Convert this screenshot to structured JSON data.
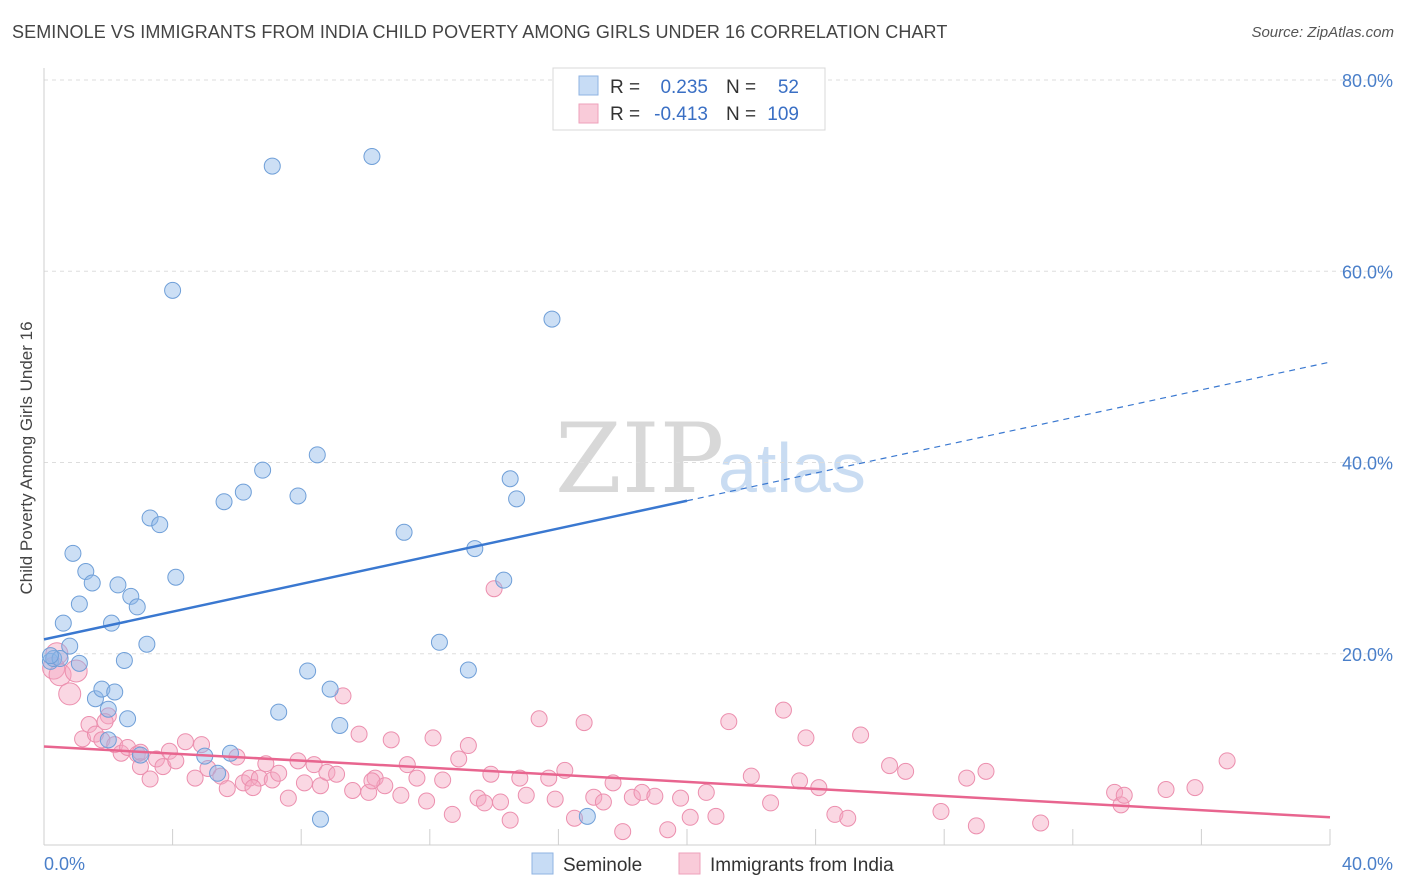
{
  "header": {
    "title": "SEMINOLE VS IMMIGRANTS FROM INDIA CHILD POVERTY AMONG GIRLS UNDER 16 CORRELATION CHART",
    "source": "Source: ZipAtlas.com"
  },
  "watermark": {
    "zip": "ZIP",
    "atlas": "atlas"
  },
  "legend": {
    "rows": [
      {
        "r_label": "R =",
        "r_value": "0.235",
        "n_label": "N =",
        "n_value": "52"
      },
      {
        "r_label": "R =",
        "r_value": "-0.413",
        "n_label": "N =",
        "n_value": "109"
      }
    ]
  },
  "bottom_legend": [
    "Seminole",
    "Immigrants from India"
  ],
  "chart_data": {
    "type": "scatter",
    "title": "SEMINOLE VS IMMIGRANTS FROM INDIA CHILD POVERTY AMONG GIRLS UNDER 16 CORRELATION CHART",
    "xlabel": "",
    "ylabel": "Child Poverty Among Girls Under 16",
    "xlim": [
      0,
      40
    ],
    "ylim": [
      0,
      80
    ],
    "x_tick_labels": [
      "0.0%",
      "40.0%"
    ],
    "y_ticks": [
      20,
      40,
      60,
      80
    ],
    "y_tick_labels": [
      "20.0%",
      "40.0%",
      "60.0%",
      "80.0%"
    ],
    "grid": true,
    "legend_position": "top-center",
    "colors": {
      "seminole": "#8fb8e8",
      "seminole_line": "#3a78d0",
      "india": "#f4a7c0",
      "india_line": "#e8658f"
    },
    "series": [
      {
        "name": "Seminole",
        "R": 0.235,
        "N": 52,
        "trend": {
          "x0": 0,
          "y0": 21.5,
          "x1": 40,
          "y1": 50.5,
          "solid_until_x": 20
        },
        "points": [
          [
            0.2,
            19.2
          ],
          [
            0.3,
            19.5
          ],
          [
            0.5,
            19.5
          ],
          [
            0.6,
            23.2
          ],
          [
            0.8,
            20.8
          ],
          [
            0.9,
            30.5
          ],
          [
            1.1,
            25.2
          ],
          [
            1.1,
            19.0
          ],
          [
            1.3,
            28.6
          ],
          [
            1.5,
            27.4
          ],
          [
            1.6,
            15.3
          ],
          [
            1.8,
            16.3
          ],
          [
            2.0,
            14.2
          ],
          [
            2.0,
            11.0
          ],
          [
            2.1,
            23.2
          ],
          [
            2.2,
            16.0
          ],
          [
            2.3,
            27.2
          ],
          [
            2.5,
            19.3
          ],
          [
            2.6,
            13.2
          ],
          [
            2.7,
            26.0
          ],
          [
            2.9,
            24.9
          ],
          [
            3.0,
            9.4
          ],
          [
            3.2,
            21.0
          ],
          [
            3.3,
            34.2
          ],
          [
            3.6,
            33.5
          ],
          [
            4.0,
            58.0
          ],
          [
            4.1,
            28.0
          ],
          [
            5.0,
            9.3
          ],
          [
            5.4,
            7.5
          ],
          [
            5.6,
            35.9
          ],
          [
            5.8,
            9.6
          ],
          [
            6.2,
            36.9
          ],
          [
            6.8,
            39.2
          ],
          [
            7.1,
            71.0
          ],
          [
            7.3,
            13.9
          ],
          [
            7.9,
            36.5
          ],
          [
            8.2,
            18.2
          ],
          [
            8.5,
            40.8
          ],
          [
            8.6,
            2.7
          ],
          [
            8.9,
            16.3
          ],
          [
            9.2,
            12.5
          ],
          [
            10.2,
            72.0
          ],
          [
            11.2,
            32.7
          ],
          [
            12.3,
            21.2
          ],
          [
            13.2,
            18.3
          ],
          [
            13.4,
            31.0
          ],
          [
            14.3,
            27.7
          ],
          [
            14.5,
            38.3
          ],
          [
            14.7,
            36.2
          ],
          [
            15.8,
            55.0
          ],
          [
            16.9,
            3.0
          ],
          [
            0.2,
            19.8
          ]
        ]
      },
      {
        "name": "Immigrants from India",
        "R": -0.413,
        "N": 109,
        "trend": {
          "x0": 0,
          "y0": 10.3,
          "x1": 40,
          "y1": 2.9
        },
        "points": [
          [
            0.3,
            18.5
          ],
          [
            0.5,
            17.8
          ],
          [
            0.8,
            15.8
          ],
          [
            1.0,
            18.2
          ],
          [
            1.2,
            11.1
          ],
          [
            1.4,
            12.6
          ],
          [
            1.6,
            11.6
          ],
          [
            1.8,
            11.0
          ],
          [
            2.0,
            13.5
          ],
          [
            2.2,
            10.5
          ],
          [
            2.4,
            9.6
          ],
          [
            2.6,
            10.2
          ],
          [
            2.9,
            9.5
          ],
          [
            3.0,
            8.2
          ],
          [
            3.3,
            6.9
          ],
          [
            3.5,
            9.0
          ],
          [
            3.7,
            8.2
          ],
          [
            3.9,
            9.8
          ],
          [
            4.1,
            8.8
          ],
          [
            4.4,
            10.8
          ],
          [
            4.7,
            7.0
          ],
          [
            4.9,
            10.5
          ],
          [
            5.1,
            8.0
          ],
          [
            5.5,
            7.2
          ],
          [
            5.7,
            5.9
          ],
          [
            6.0,
            9.2
          ],
          [
            6.2,
            6.5
          ],
          [
            6.4,
            7.0
          ],
          [
            6.7,
            7.0
          ],
          [
            6.9,
            8.5
          ],
          [
            7.1,
            6.8
          ],
          [
            7.3,
            7.5
          ],
          [
            7.6,
            4.9
          ],
          [
            7.9,
            8.8
          ],
          [
            8.1,
            6.5
          ],
          [
            8.4,
            8.4
          ],
          [
            8.6,
            6.2
          ],
          [
            8.8,
            7.6
          ],
          [
            9.1,
            7.4
          ],
          [
            9.3,
            15.6
          ],
          [
            9.6,
            5.7
          ],
          [
            9.8,
            11.6
          ],
          [
            10.1,
            5.5
          ],
          [
            10.3,
            7.0
          ],
          [
            10.6,
            6.2
          ],
          [
            10.8,
            11.0
          ],
          [
            11.1,
            5.2
          ],
          [
            11.3,
            8.4
          ],
          [
            11.6,
            7.0
          ],
          [
            11.9,
            4.6
          ],
          [
            12.1,
            11.2
          ],
          [
            12.4,
            6.8
          ],
          [
            12.7,
            3.2
          ],
          [
            12.9,
            9.0
          ],
          [
            13.2,
            10.4
          ],
          [
            13.5,
            4.9
          ],
          [
            13.7,
            4.4
          ],
          [
            13.9,
            7.4
          ],
          [
            14.2,
            4.5
          ],
          [
            14.5,
            2.6
          ],
          [
            14.8,
            7.0
          ],
          [
            15.0,
            5.2
          ],
          [
            15.4,
            13.2
          ],
          [
            15.7,
            7.0
          ],
          [
            15.9,
            4.8
          ],
          [
            16.2,
            7.8
          ],
          [
            16.5,
            2.8
          ],
          [
            16.8,
            12.8
          ],
          [
            17.1,
            5.0
          ],
          [
            17.4,
            4.5
          ],
          [
            17.7,
            6.5
          ],
          [
            18.0,
            1.4
          ],
          [
            18.3,
            5.0
          ],
          [
            18.6,
            5.5
          ],
          [
            19.0,
            5.1
          ],
          [
            19.4,
            1.6
          ],
          [
            19.8,
            4.9
          ],
          [
            20.1,
            2.9
          ],
          [
            20.6,
            5.5
          ],
          [
            20.9,
            3.0
          ],
          [
            21.3,
            12.9
          ],
          [
            22.0,
            7.2
          ],
          [
            22.6,
            4.4
          ],
          [
            23.0,
            14.1
          ],
          [
            23.5,
            6.7
          ],
          [
            23.7,
            11.2
          ],
          [
            24.1,
            6.0
          ],
          [
            24.6,
            3.2
          ],
          [
            25.0,
            2.8
          ],
          [
            25.4,
            11.5
          ],
          [
            26.3,
            8.3
          ],
          [
            26.8,
            7.7
          ],
          [
            27.9,
            3.5
          ],
          [
            28.7,
            7.0
          ],
          [
            29.0,
            2.0
          ],
          [
            29.3,
            7.7
          ],
          [
            31.0,
            2.3
          ],
          [
            33.3,
            5.5
          ],
          [
            33.5,
            4.2
          ],
          [
            33.6,
            5.2
          ],
          [
            34.9,
            5.8
          ],
          [
            35.8,
            6.0
          ],
          [
            36.8,
            8.8
          ],
          [
            14.0,
            26.8
          ],
          [
            0.4,
            20.0
          ],
          [
            1.9,
            12.9
          ],
          [
            3.0,
            9.7
          ],
          [
            6.5,
            6.0
          ],
          [
            10.2,
            6.7
          ]
        ]
      }
    ]
  }
}
